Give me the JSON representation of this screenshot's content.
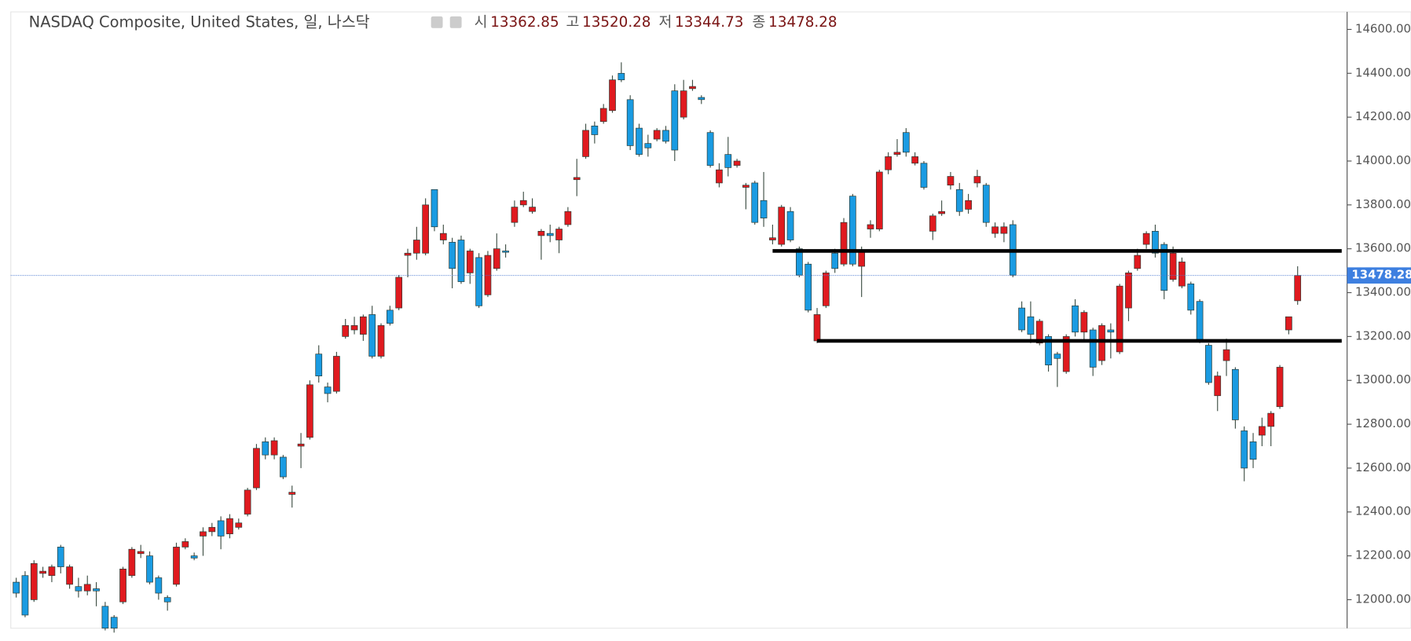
{
  "chart_data": {
    "type": "candlestick",
    "title": "NASDAQ Composite, United States, 일, 나스닥",
    "header": [
      {
        "label": "시",
        "value": 13362.85
      },
      {
        "label": "고",
        "value": 13520.28
      },
      {
        "label": "저",
        "value": 13344.73
      },
      {
        "label": "종",
        "value": 13478.28
      }
    ],
    "up_color": "#e01a1f",
    "down_color": "#1a9be2",
    "ylim": [
      11870,
      14680
    ],
    "yticks": [
      {
        "value": 12000,
        "label": "12000.00"
      },
      {
        "value": 12200,
        "label": "12200.00"
      },
      {
        "value": 12400,
        "label": "12400.00"
      },
      {
        "value": 12600,
        "label": "12600.00"
      },
      {
        "value": 12800,
        "label": "12800.00"
      },
      {
        "value": 13000,
        "label": "13000.00"
      },
      {
        "value": 13200,
        "label": "13200.00"
      },
      {
        "value": 13400,
        "label": "13400.00"
      },
      {
        "value": 13600,
        "label": "13600.00"
      },
      {
        "value": 13800,
        "label": "13800.00"
      },
      {
        "value": 14000,
        "label": "14000.00"
      },
      {
        "value": 14200,
        "label": "14200.00"
      },
      {
        "value": 14400,
        "label": "14400.00"
      },
      {
        "value": 14600,
        "label": "14600.00"
      }
    ],
    "hlines": [
      {
        "value": 13590,
        "start": 85
      },
      {
        "value": 13180,
        "start": 90
      }
    ],
    "open": [
      12080,
      12110,
      12000,
      12120,
      12110,
      12240,
      12070,
      12060,
      12040,
      12050,
      11970,
      11920,
      11990,
      12110,
      12210,
      12200,
      12100,
      12010,
      12070,
      12240,
      12200,
      12290,
      12310,
      12360,
      12300,
      12330,
      12390,
      12510,
      12720,
      12660,
      12650,
      12480,
      12700,
      12740,
      13120,
      12970,
      12950,
      13200,
      13230,
      13210,
      13300,
      13110,
      13320,
      13330,
      13570,
      13580,
      13580,
      13870,
      13640,
      13630,
      13640,
      13490,
      13560,
      13390,
      13510,
      13590,
      13720,
      13800,
      13770,
      13660,
      13670,
      13640,
      13710,
      13915,
      14020,
      14160,
      14180,
      14230,
      14400,
      14280,
      14150,
      14080,
      14100,
      14140,
      14320,
      14200,
      14330,
      14290,
      14130,
      13900,
      14030,
      13980,
      13880,
      13900,
      13820,
      13640,
      13620,
      13770,
      13600,
      13530,
      13180,
      13340,
      13580,
      13530,
      13840,
      13520,
      13690,
      13690,
      13960,
      14030,
      14130,
      13990,
      13990,
      13680,
      13760,
      13890,
      13870,
      13780,
      13900,
      13890,
      13670,
      13670,
      13710,
      13330,
      13290,
      13170,
      13200,
      13120,
      13040,
      13340,
      13220,
      13230,
      13090,
      13230,
      13130,
      13330,
      13510,
      13620,
      13680,
      13620,
      13460,
      13430,
      13440,
      13360,
      13160,
      12930,
      13090,
      13050,
      12770,
      12720,
      12750,
      12790,
      12880,
      13230,
      13362.85
    ],
    "high": [
      12100,
      12130,
      12180,
      12150,
      12160,
      12250,
      12160,
      12100,
      12110,
      12080,
      11990,
      11930,
      12150,
      12240,
      12250,
      12220,
      12110,
      12020,
      12260,
      12280,
      12215,
      12330,
      12350,
      12380,
      12390,
      12370,
      12510,
      12710,
      12740,
      12740,
      12660,
      12520,
      12760,
      13000,
      13160,
      12990,
      13130,
      13280,
      13290,
      13300,
      13340,
      13260,
      13340,
      13480,
      13600,
      13700,
      13830,
      13870,
      13710,
      13650,
      13660,
      13600,
      13580,
      13590,
      13670,
      13620,
      13820,
      13860,
      13830,
      13690,
      13710,
      13700,
      13790,
      14010,
      14170,
      14180,
      14260,
      14390,
      14450,
      14300,
      14170,
      14120,
      14150,
      14160,
      14350,
      14370,
      14370,
      14300,
      14140,
      13990,
      14110,
      14010,
      13900,
      13910,
      13950,
      13710,
      13800,
      13790,
      13610,
      13540,
      13330,
      13500,
      13600,
      13740,
      13850,
      13610,
      13730,
      13960,
      14040,
      14100,
      14150,
      14040,
      14000,
      13760,
      13820,
      13950,
      13900,
      13850,
      13960,
      13900,
      13720,
      13720,
      13730,
      13360,
      13360,
      13280,
      13210,
      13130,
      13210,
      13370,
      13320,
      13240,
      13260,
      13260,
      13440,
      13500,
      13600,
      13680,
      13710,
      13630,
      13610,
      13560,
      13450,
      13370,
      13170,
      13040,
      13190,
      13060,
      12790,
      12760,
      12830,
      12860,
      13070,
      13290,
      13520.28
    ],
    "low": [
      12010,
      11920,
      11990,
      12100,
      12080,
      12120,
      12050,
      12010,
      12020,
      11970,
      11860,
      11850,
      11980,
      12100,
      12190,
      12070,
      12000,
      11950,
      12060,
      12230,
      12180,
      12200,
      12290,
      12230,
      12280,
      12320,
      12380,
      12500,
      12640,
      12640,
      12550,
      12420,
      12600,
      12730,
      12990,
      12900,
      12940,
      13190,
      13210,
      13180,
      13100,
      13100,
      13250,
      13320,
      13470,
      13550,
      13570,
      13680,
      13620,
      13420,
      13440,
      13440,
      13330,
      13380,
      13500,
      13560,
      13700,
      13790,
      13760,
      13550,
      13630,
      13580,
      13700,
      13840,
      14010,
      14080,
      14170,
      14220,
      14360,
      14050,
      14020,
      14020,
      14090,
      14080,
      14000,
      14190,
      14320,
      14260,
      13970,
      13880,
      13930,
      13970,
      13780,
      13710,
      13700,
      13620,
      13610,
      13630,
      13470,
      13310,
      13170,
      13330,
      13490,
      13520,
      13520,
      13380,
      13650,
      13680,
      13940,
      14020,
      14020,
      13980,
      13870,
      13640,
      13750,
      13870,
      13750,
      13760,
      13880,
      13700,
      13650,
      13630,
      13470,
      13220,
      13170,
      13160,
      13040,
      12970,
      13030,
      13200,
      13180,
      13020,
      13070,
      13100,
      13120,
      13270,
      13500,
      13600,
      13560,
      13370,
      13450,
      13420,
      13300,
      13170,
      12980,
      12860,
      13020,
      12780,
      12540,
      12600,
      12700,
      12700,
      12870,
      13210,
      13344.73
    ],
    "close": [
      12030,
      11930,
      12165,
      12130,
      12150,
      12150,
      12150,
      12040,
      12070,
      12040,
      11870,
      11870,
      12140,
      12230,
      12220,
      12080,
      12030,
      11990,
      12240,
      12265,
      12190,
      12310,
      12330,
      12290,
      12370,
      12350,
      12500,
      12690,
      12660,
      12725,
      12560,
      12490,
      12710,
      12980,
      13020,
      12940,
      13110,
      13250,
      13250,
      13290,
      13110,
      13250,
      13260,
      13470,
      13580,
      13640,
      13800,
      13700,
      13670,
      13510,
      13450,
      13590,
      13340,
      13570,
      13600,
      13585,
      13790,
      13820,
      13790,
      13680,
      13660,
      13690,
      13770,
      13925,
      14140,
      14120,
      14240,
      14370,
      14370,
      14070,
      14030,
      14060,
      14140,
      14090,
      14050,
      14320,
      14340,
      14280,
      13980,
      13960,
      13970,
      14000,
      13890,
      13720,
      13740,
      13650,
      13790,
      13640,
      13480,
      13320,
      13300,
      13490,
      13510,
      13720,
      13530,
      13590,
      13710,
      13950,
      14020,
      14040,
      14040,
      14020,
      13880,
      13750,
      13770,
      13930,
      13770,
      13820,
      13930,
      13720,
      13700,
      13700,
      13480,
      13230,
      13210,
      13270,
      13070,
      13100,
      13200,
      13220,
      13310,
      13060,
      13250,
      13220,
      13430,
      13490,
      13570,
      13670,
      13580,
      13410,
      13580,
      13540,
      13320,
      13180,
      12990,
      13020,
      13140,
      12820,
      12600,
      12640,
      12790,
      12850,
      13060,
      13290,
      13478.28
    ]
  }
}
